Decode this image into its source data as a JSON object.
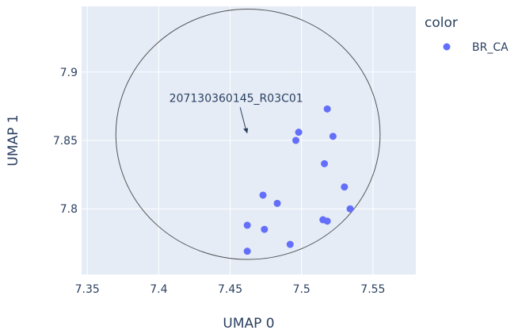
{
  "chart_data": {
    "type": "scatter",
    "xlabel": "UMAP 0",
    "ylabel": "UMAP 1",
    "xlim": [
      7.346,
      7.58
    ],
    "ylim": [
      7.752,
      7.948
    ],
    "xticks": [
      7.35,
      7.4,
      7.45,
      7.5,
      7.55
    ],
    "xtick_labels": [
      "7.35",
      "7.4",
      "7.45",
      "7.5",
      "7.55"
    ],
    "yticks": [
      7.8,
      7.85,
      7.9
    ],
    "ytick_labels": [
      "7.8",
      "7.85",
      "7.9"
    ],
    "grid": true,
    "legend": {
      "title": "color",
      "placement": "right"
    },
    "series": [
      {
        "name": "BR_CA",
        "color": "#636efa",
        "points": [
          {
            "x": 7.518,
            "y": 7.873
          },
          {
            "x": 7.498,
            "y": 7.856
          },
          {
            "x": 7.496,
            "y": 7.85
          },
          {
            "x": 7.522,
            "y": 7.853
          },
          {
            "x": 7.516,
            "y": 7.833
          },
          {
            "x": 7.53,
            "y": 7.816
          },
          {
            "x": 7.534,
            "y": 7.8
          },
          {
            "x": 7.473,
            "y": 7.81
          },
          {
            "x": 7.483,
            "y": 7.804
          },
          {
            "x": 7.515,
            "y": 7.792
          },
          {
            "x": 7.518,
            "y": 7.791
          },
          {
            "x": 7.462,
            "y": 7.788
          },
          {
            "x": 7.474,
            "y": 7.785
          },
          {
            "x": 7.492,
            "y": 7.774
          },
          {
            "x": 7.462,
            "y": 7.769
          }
        ]
      }
    ],
    "annotations": [
      {
        "text": "207130360145_R03C01",
        "x": 7.462,
        "y": 7.855,
        "arrow": true
      }
    ],
    "shapes": [
      {
        "type": "circle",
        "x0": 7.37,
        "x1": 7.555,
        "y0": 7.763,
        "y1": 7.946,
        "line_color": "#555555"
      }
    ],
    "colors": {
      "plot_bg": "#e5ecf6",
      "grid": "#ffffff",
      "marker": "#636efa"
    }
  }
}
